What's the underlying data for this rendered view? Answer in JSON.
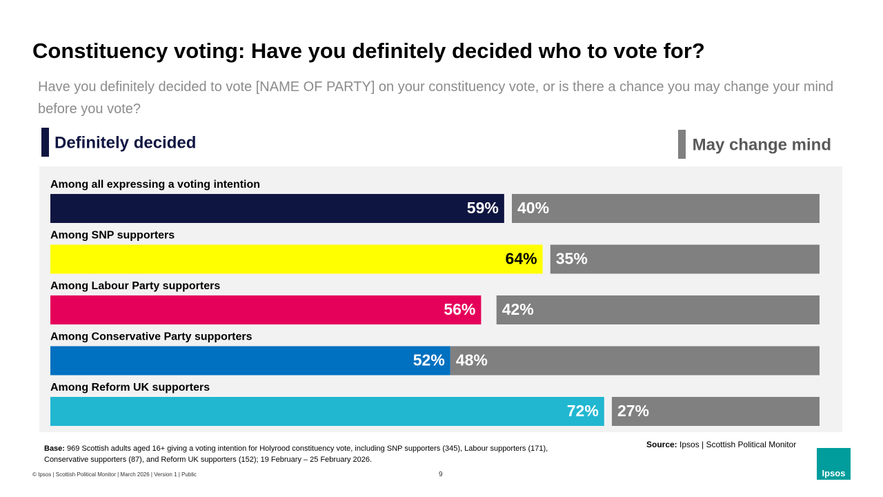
{
  "chart_data": {
    "type": "bar",
    "orientation": "horizontal",
    "title": "Constituency voting: Have you definitely decided who to vote for?",
    "subtitle": "Have you definitely decided to vote [NAME OF PARTY] on your constituency vote, or is there a chance you may change your mind before you vote?",
    "categories": [
      "Among all expressing a voting intention",
      "Among SNP supporters",
      "Among Labour Party supporters",
      "Among Conservative Party supporters",
      "Among Reform UK supporters"
    ],
    "series": [
      {
        "name": "Definitely decided",
        "color": "#0f1541",
        "colors": [
          "#0f1541",
          "#ffff00",
          "#e5005a",
          "#0070c0",
          "#21b7d1"
        ],
        "align": "left",
        "values": [
          59,
          64,
          56,
          52,
          72
        ],
        "value_labels": [
          "59%",
          "64%",
          "56%",
          "52%",
          "72%"
        ]
      },
      {
        "name": "May change mind",
        "color": "#808080",
        "align": "right",
        "values": [
          40,
          35,
          42,
          48,
          27
        ],
        "value_labels": [
          "40%",
          "35%",
          "42%",
          "48%",
          "27%"
        ]
      }
    ],
    "xlim": [
      0,
      100
    ]
  },
  "notes": {
    "base_label": "Base:",
    "base_text": "969 Scottish adults aged 16+ giving a voting intention for Holyrood constituency vote, including SNP supporters (345), Labour supporters (171), Conservative supporters (87), and Reform UK supporters (152); 19 February – 25 February 2026.",
    "source_label": "Source:",
    "source_text": "Ipsos | Scottish Political Monitor",
    "footer": "© Ipsos | Scottish Political Monitor | March 2026 | Version 1 | Public",
    "page_number": "9",
    "logo": "Ipsos"
  }
}
